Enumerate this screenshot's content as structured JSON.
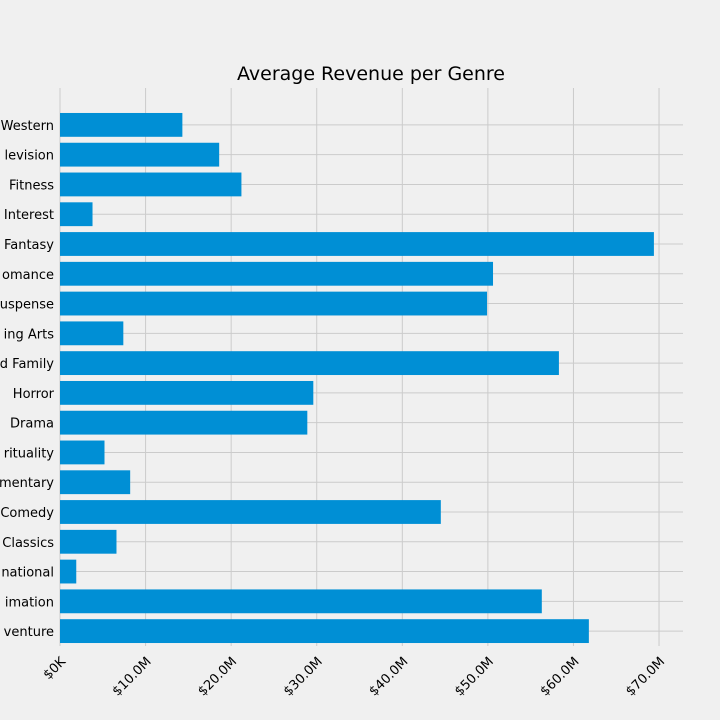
{
  "chart_data": {
    "type": "bar",
    "orientation": "horizontal",
    "title": "Average Revenue per Genre",
    "xlabel": "",
    "ylabel": "",
    "categories": [
      "Adventure",
      "Animation",
      "International",
      "Classics",
      "Comedy",
      "Documentary",
      "Faith & Spirituality",
      "Drama",
      "Horror",
      "Kids and Family",
      "Performing Arts",
      "Suspense",
      "Romance",
      "Fantasy",
      "Special Interest",
      "Fitness",
      "Television",
      "Western"
    ],
    "visible_category_labels": [
      "venture",
      "imation",
      "national",
      "Classics",
      "Comedy",
      "mentary",
      "rituality",
      "Drama",
      "Horror",
      "d Family",
      "ing Arts",
      "uspense",
      "omance",
      "Fantasy",
      "Interest",
      "Fitness",
      "levision",
      "Western"
    ],
    "values": [
      61.8,
      56.3,
      1.9,
      6.6,
      44.5,
      8.2,
      5.2,
      28.9,
      29.6,
      58.3,
      7.4,
      49.9,
      50.6,
      69.4,
      3.8,
      21.2,
      18.6,
      14.3
    ],
    "xlim": [
      0,
      72.8
    ],
    "xticks": [
      0,
      10,
      20,
      30,
      40,
      50,
      60,
      70
    ],
    "xtick_labels": [
      "$0K",
      "$10.0M",
      "$20.0M",
      "$30.0M",
      "$40.0M",
      "$50.0M",
      "$60.0M",
      "$70.0M"
    ],
    "bar_color": "#008fd5",
    "grid": true,
    "legend": "none"
  }
}
